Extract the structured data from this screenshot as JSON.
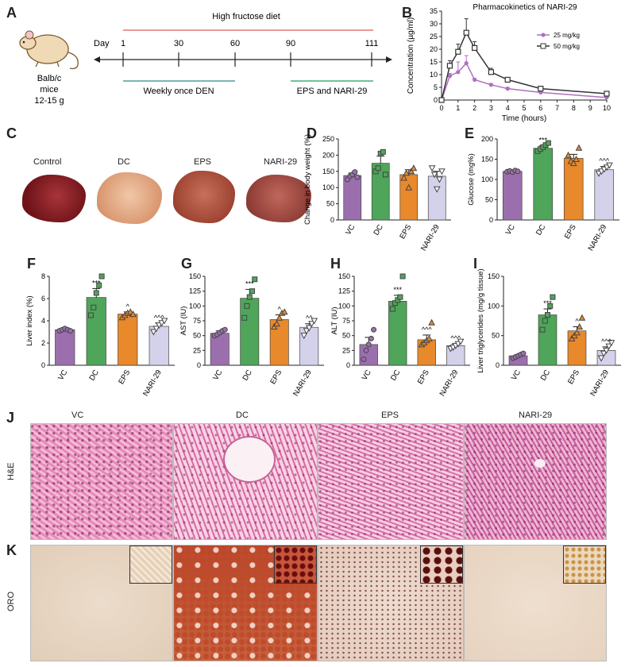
{
  "panel_labels": [
    "A",
    "B",
    "C",
    "D",
    "E",
    "F",
    "G",
    "H",
    "I",
    "J",
    "K"
  ],
  "panelA": {
    "mouse_label": [
      "Balb/c",
      "mice",
      "12-15 g"
    ],
    "diet_label": "High fructose diet",
    "day_label": "Day",
    "days": [
      "1",
      "30",
      "60",
      "90",
      "111"
    ],
    "den_label": "Weekly once DEN",
    "treat_label": "EPS and NARI-29",
    "colors": {
      "diet": "#e25b5b",
      "den": "#2e8b8b",
      "treat": "#1f9e62"
    }
  },
  "panelC": {
    "labels": [
      "Control",
      "DC",
      "EPS",
      "NARI-29"
    ]
  },
  "group_colors": {
    "VC": "#9b6fae",
    "DC": "#4fa55a",
    "EPS": "#e8892c",
    "NARI-29": "#d4d2ea"
  },
  "chart_data": [
    {
      "id": "B",
      "type": "line",
      "title": "Pharmacokinetics of NARI-29",
      "xlabel": "Time (hours)",
      "ylabel": "Concentration (µg/ml)",
      "xlim": [
        0,
        10
      ],
      "ylim": [
        0,
        35
      ],
      "xticks": [
        "0",
        "1",
        "2",
        "3",
        "4",
        "5",
        "6",
        "7",
        "8",
        "9",
        "10"
      ],
      "yticks": [
        "0",
        "5",
        "10",
        "15",
        "20",
        "25",
        "30",
        "35"
      ],
      "legend_position": "right",
      "series": [
        {
          "name": "25 mg/kg",
          "color": "#b06fc0",
          "marker": "circle",
          "x": [
            0,
            0.5,
            1,
            1.5,
            2,
            3,
            4,
            6,
            10
          ],
          "y": [
            0,
            9.5,
            11,
            14.5,
            8,
            6,
            4.5,
            3,
            1
          ],
          "err": [
            0,
            1,
            4,
            3,
            0.5,
            0.5,
            0.5,
            0.5,
            0.3
          ]
        },
        {
          "name": "50 mg/kg",
          "color": "#333333",
          "marker": "square",
          "x": [
            0,
            0.5,
            1,
            1.5,
            2,
            3,
            4,
            6,
            10
          ],
          "y": [
            0,
            13.5,
            19,
            26.5,
            20.5,
            11,
            8,
            4.5,
            2.5
          ],
          "err": [
            0,
            2,
            3,
            5.5,
            2.5,
            1.5,
            0.5,
            0.5,
            0.3
          ]
        }
      ]
    },
    {
      "id": "D",
      "type": "bar",
      "ylabel": "Change in body weight (%)",
      "categories": [
        "VC",
        "DC",
        "EPS",
        "NARI-29"
      ],
      "ylim": [
        0,
        250
      ],
      "yticks": [
        "0",
        "50",
        "100",
        "150",
        "200",
        "250"
      ],
      "values": [
        137,
        175,
        140,
        135
      ],
      "err": [
        8,
        22,
        15,
        15
      ],
      "annotations": [
        "",
        "",
        "",
        ""
      ],
      "points": [
        [
          125,
          135,
          140,
          148,
          132
        ],
        [
          150,
          160,
          205,
          210,
          140
        ],
        [
          130,
          145,
          100,
          150,
          160
        ],
        [
          160,
          140,
          95,
          125,
          150
        ]
      ]
    },
    {
      "id": "E",
      "type": "bar",
      "ylabel": "Glucose (mg%)",
      "categories": [
        "VC",
        "DC",
        "EPS",
        "NARI-29"
      ],
      "ylim": [
        0,
        200
      ],
      "yticks": [
        "0",
        "50",
        "100",
        "150",
        "200"
      ],
      "values": [
        120,
        177,
        152,
        124
      ],
      "err": [
        2,
        6,
        10,
        8
      ],
      "annotations": [
        "",
        "***",
        "",
        "^^^"
      ],
      "points": [
        [
          119,
          121,
          118,
          122,
          120
        ],
        [
          170,
          175,
          180,
          185,
          190
        ],
        [
          160,
          145,
          140,
          150,
          178
        ],
        [
          115,
          120,
          125,
          130,
          135
        ]
      ]
    },
    {
      "id": "F",
      "type": "bar",
      "ylabel": "Liver index (%)",
      "categories": [
        "VC",
        "DC",
        "EPS",
        "NARI-29"
      ],
      "ylim": [
        0,
        8
      ],
      "yticks": [
        "0",
        "2",
        "4",
        "6",
        "8"
      ],
      "values": [
        3.2,
        6.1,
        4.6,
        3.5
      ],
      "err": [
        0.1,
        0.8,
        0.2,
        0.3
      ],
      "annotations": [
        "",
        "***",
        "^",
        "^^^"
      ],
      "points": [
        [
          3.1,
          3.2,
          3.3,
          3.2,
          3.1
        ],
        [
          4.5,
          5.2,
          6.5,
          7.2,
          8.0
        ],
        [
          4.3,
          4.5,
          4.7,
          4.8,
          4.6
        ],
        [
          3.0,
          3.3,
          3.6,
          3.8,
          4.0
        ]
      ]
    },
    {
      "id": "G",
      "type": "bar",
      "ylabel": "AST (IU)",
      "categories": [
        "VC",
        "DC",
        "EPS",
        "NARI-29"
      ],
      "ylim": [
        0,
        150
      ],
      "yticks": [
        "0",
        "25",
        "50",
        "75",
        "100",
        "125",
        "150"
      ],
      "values": [
        54,
        113,
        77,
        64
      ],
      "err": [
        4,
        15,
        8,
        6
      ],
      "annotations": [
        "",
        "***",
        "^",
        "^^"
      ],
      "points": [
        [
          50,
          52,
          55,
          58,
          60
        ],
        [
          80,
          100,
          115,
          125,
          145
        ],
        [
          65,
          70,
          80,
          88,
          90
        ],
        [
          50,
          58,
          63,
          70,
          75
        ]
      ]
    },
    {
      "id": "H",
      "type": "bar",
      "ylabel": "ALT (IU)",
      "categories": [
        "VC",
        "DC",
        "EPS",
        "NARI-29"
      ],
      "ylim": [
        0,
        150
      ],
      "yticks": [
        "0",
        "25",
        "50",
        "75",
        "100",
        "125",
        "150"
      ],
      "values": [
        35,
        108,
        43,
        33
      ],
      "err": [
        12,
        10,
        8,
        3
      ],
      "annotations": [
        "",
        "***",
        "^^^",
        "^^^"
      ],
      "points": [
        [
          10,
          25,
          35,
          45,
          60
        ],
        [
          95,
          105,
          110,
          115,
          150
        ],
        [
          35,
          38,
          42,
          45,
          72
        ],
        [
          28,
          30,
          33,
          36,
          40
        ]
      ]
    },
    {
      "id": "I",
      "type": "bar",
      "ylabel": "Liver triglycerides (mg/g tissue)",
      "categories": [
        "VC",
        "DC",
        "EPS",
        "NARI-29"
      ],
      "ylim": [
        0,
        150
      ],
      "yticks": [
        "0",
        "50",
        "100",
        "150"
      ],
      "values": [
        16,
        85,
        58,
        25
      ],
      "err": [
        2,
        10,
        7,
        6
      ],
      "annotations": [
        "",
        "***",
        "^",
        "^^^"
      ],
      "points": [
        [
          12,
          14,
          16,
          18,
          20
        ],
        [
          60,
          75,
          85,
          100,
          115
        ],
        [
          45,
          50,
          55,
          65,
          80
        ],
        [
          12,
          20,
          25,
          32,
          38
        ]
      ]
    }
  ],
  "panelJ": {
    "labels": [
      "VC",
      "DC",
      "EPS",
      "NARI-29"
    ],
    "row_label": "H&E"
  },
  "panelK": {
    "row_label": "ORO"
  }
}
